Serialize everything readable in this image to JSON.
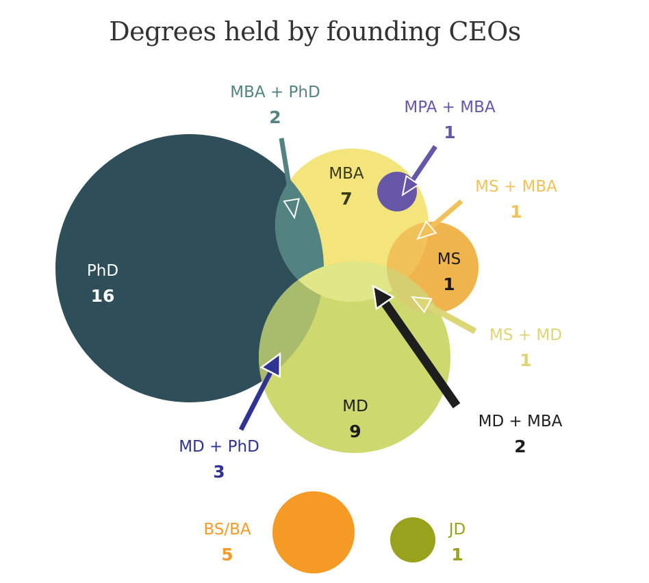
{
  "title": "Degrees held by founding CEOs",
  "sets": {
    "phd": {
      "label": "PhD",
      "count": "16",
      "color": "#2e4e5a",
      "text_color": "#ffffff"
    },
    "mba": {
      "label": "MBA",
      "count": "7",
      "color": "#f3e57b",
      "text_color": "#3a3a1a"
    },
    "md": {
      "label": "MD",
      "count": "9",
      "color": "#cdd96f",
      "text_color": "#1e1e1e"
    },
    "ms": {
      "label": "MS",
      "count": "1",
      "color": "#f0b44d",
      "text_color": "#1a1a1a"
    },
    "bsba": {
      "label": "BS/BA",
      "count": "5",
      "color": "#f59b25",
      "text_color": "#f59b25"
    },
    "jd": {
      "label": "JD",
      "count": "1",
      "color": "#99a21c",
      "text_color": "#99a21c"
    }
  },
  "intersections": {
    "mba_phd": {
      "label": "MBA + PhD",
      "count": "2",
      "color": "#528381"
    },
    "mpa_mba": {
      "label": "MPA + MBA",
      "count": "1",
      "color": "#6556a8"
    },
    "ms_mba": {
      "label": "MS + MBA",
      "count": "1",
      "color": "#f2c25a"
    },
    "ms_md": {
      "label": "MS + MD",
      "count": "1",
      "color": "#ddd676"
    },
    "md_mba": {
      "label": "MD + MBA",
      "count": "2",
      "color": "#1e1e1e"
    },
    "md_phd": {
      "label": "MD + PhD",
      "count": "3",
      "color": "#2f3394"
    }
  },
  "overlap_colors": {
    "phd_md": "#a9bb6c",
    "mba_md": "#e1e689",
    "ms_md_body": "#d6cf72"
  }
}
